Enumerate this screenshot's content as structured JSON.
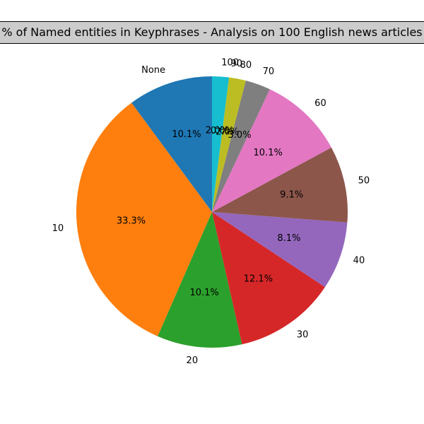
{
  "chart_data": {
    "type": "pie",
    "title": "% of Named entities in Keyphrases - Analysis on 100 English news articles",
    "start_angle_deg": 90,
    "direction": "counterclockwise",
    "slices": [
      {
        "label": "None",
        "value": 10.1,
        "pct_label": "10.1%",
        "color": "#1f77b4"
      },
      {
        "label": "10",
        "value": 33.3,
        "pct_label": "33.3%",
        "color": "#ff7f0e"
      },
      {
        "label": "20",
        "value": 10.1,
        "pct_label": "10.1%",
        "color": "#2ca02c"
      },
      {
        "label": "30",
        "value": 12.1,
        "pct_label": "12.1%",
        "color": "#d62728"
      },
      {
        "label": "40",
        "value": 8.1,
        "pct_label": "8.1%",
        "color": "#9467bd"
      },
      {
        "label": "50",
        "value": 9.1,
        "pct_label": "9.1%",
        "color": "#8c564b"
      },
      {
        "label": "60",
        "value": 10.1,
        "pct_label": "10.1%",
        "color": "#e377c2"
      },
      {
        "label": "70",
        "value": 3.0,
        "pct_label": "3.0%",
        "color": "#7f7f7f"
      },
      {
        "label": "80",
        "value": 2.0,
        "pct_label": "2.0%",
        "color": "#bcbd22"
      },
      {
        "label": "90",
        "value": 0.0,
        "pct_label": "0.0%",
        "color": "#17becf"
      },
      {
        "label": "100",
        "value": 2.0,
        "pct_label": "2.0%",
        "color": "#17becf"
      }
    ]
  }
}
